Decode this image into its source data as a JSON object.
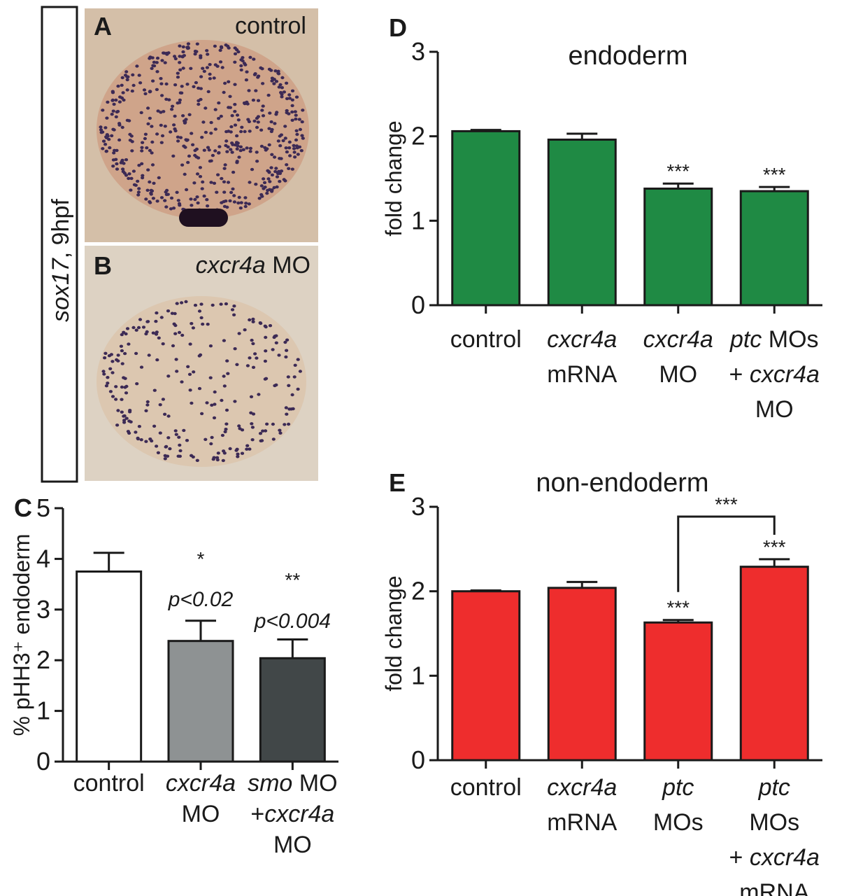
{
  "figure": {
    "side_label": {
      "gene": "sox17",
      "stage": ", 9hpf"
    },
    "panels": {
      "A": "A",
      "B": "B",
      "C": "C",
      "D": "D",
      "E": "E"
    },
    "photo_labels": {
      "A": {
        "text": "control"
      },
      "B": {
        "gene": "cxcr4a",
        "suffix": " MO"
      }
    },
    "colors": {
      "white_bar": "#ffffff",
      "gray_bar": "#8e9293",
      "dark_bar": "#414748",
      "green_bar": "#1f8a44",
      "red_bar": "#ee2d2d",
      "embryo_bg": "#d6c0a8",
      "embryo_bg_b": "#ded2c2",
      "stain": "#3c2a55"
    }
  },
  "chart_data": [
    {
      "id": "C",
      "type": "bar",
      "title": "",
      "ylabel": "% pHH3⁺ endoderm",
      "ylim": [
        0,
        5
      ],
      "yticks": [
        "0",
        "1",
        "2",
        "3",
        "4",
        "5"
      ],
      "categories": [
        [
          {
            "t": "control",
            "i": false
          }
        ],
        [
          {
            "t": "cxcr4a",
            "i": true
          },
          {
            "t": "MO",
            "i": false
          }
        ],
        [
          {
            "t": "smo",
            "i": true
          },
          {
            "t": " MO",
            "i": false
          },
          {
            "t": "+cxcr4a",
            "i": true
          },
          {
            "t": "MO",
            "i": false
          }
        ]
      ],
      "category_lines": [
        [
          [
            "control"
          ]
        ],
        [
          [
            "cxcr4a"
          ],
          [
            "MO"
          ]
        ],
        [
          [
            "smo",
            " MO"
          ],
          [
            "+",
            "cxcr4a"
          ],
          [
            "MO"
          ]
        ]
      ],
      "values": [
        3.75,
        2.38,
        2.04
      ],
      "errors": [
        0.37,
        0.4,
        0.37
      ],
      "bar_colors": [
        "#ffffff",
        "#8e9293",
        "#414748"
      ],
      "annotations": [
        {
          "bar": 1,
          "stars": "*",
          "p": "p<0.02"
        },
        {
          "bar": 2,
          "stars": "**",
          "p": "p<0.004"
        }
      ]
    },
    {
      "id": "D",
      "type": "bar",
      "title": "endoderm",
      "ylabel": "fold change",
      "ylim": [
        0,
        3
      ],
      "yticks": [
        "0",
        "1",
        "2",
        "3"
      ],
      "category_lines": [
        [
          [
            "control"
          ]
        ],
        [
          [
            "cxcr4a"
          ],
          [
            "mRNA"
          ]
        ],
        [
          [
            "cxcr4a"
          ],
          [
            "MO"
          ]
        ],
        [
          [
            "ptc",
            " MOs"
          ],
          [
            "+ ",
            "cxcr4a"
          ],
          [
            "MO"
          ]
        ]
      ],
      "values": [
        2.06,
        1.96,
        1.38,
        1.35
      ],
      "errors": [
        0.015,
        0.07,
        0.06,
        0.05
      ],
      "bar_color": "#1f8a44",
      "stars": [
        "",
        "",
        "***",
        "***"
      ]
    },
    {
      "id": "E",
      "type": "bar",
      "title": "non-endoderm",
      "ylabel": "fold change",
      "ylim": [
        0,
        3
      ],
      "yticks": [
        "0",
        "1",
        "2",
        "3"
      ],
      "category_lines": [
        [
          [
            "control"
          ]
        ],
        [
          [
            "cxcr4a"
          ],
          [
            "mRNA"
          ]
        ],
        [
          [
            "ptc"
          ],
          [
            "MOs"
          ]
        ],
        [
          [
            "ptc"
          ],
          [
            "MOs"
          ],
          [
            "+ ",
            "cxcr4a"
          ],
          [
            "mRNA"
          ]
        ]
      ],
      "values": [
        2.0,
        2.04,
        1.63,
        2.29
      ],
      "errors": [
        0.01,
        0.07,
        0.03,
        0.09
      ],
      "bar_color": "#ee2d2d",
      "stars": [
        "",
        "",
        "***",
        "***"
      ],
      "bracket": {
        "from": 2,
        "to": 3,
        "stars": "***"
      }
    }
  ]
}
